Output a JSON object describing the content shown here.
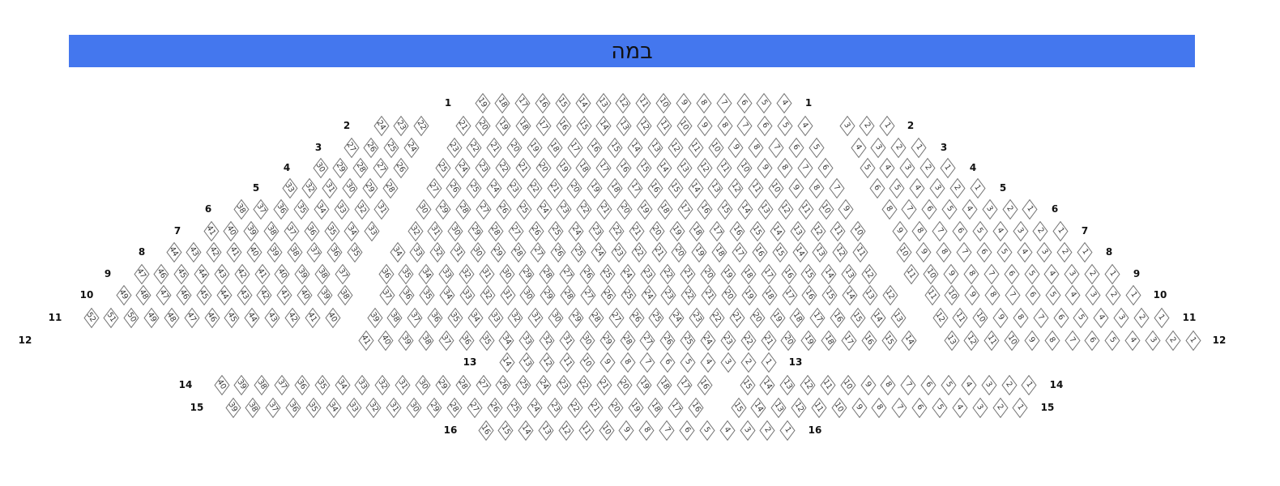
{
  "stage": {
    "label": "במה",
    "color": "#4477ee"
  },
  "rows": [
    {
      "label": "1",
      "blocks": [
        [
          19,
          4
        ]
      ]
    },
    {
      "label": "2",
      "blocks": [
        [
          24,
          22
        ],
        [
          21,
          4
        ],
        [
          3,
          1
        ]
      ]
    },
    {
      "label": "3",
      "blocks": [
        [
          27,
          24
        ],
        [
          23,
          5
        ],
        [
          4,
          1
        ]
      ]
    },
    {
      "label": "4",
      "blocks": [
        [
          30,
          26
        ],
        [
          25,
          6
        ],
        [
          5,
          1
        ]
      ]
    },
    {
      "label": "5",
      "blocks": [
        [
          33,
          28
        ],
        [
          27,
          7
        ],
        [
          6,
          1
        ]
      ]
    },
    {
      "label": "6",
      "blocks": [
        [
          38,
          31
        ],
        [
          30,
          9
        ],
        [
          8,
          1
        ]
      ]
    },
    {
      "label": "7",
      "blocks": [
        [
          41,
          33
        ],
        [
          32,
          10
        ],
        [
          9,
          1
        ]
      ]
    },
    {
      "label": "8",
      "blocks": [
        [
          44,
          35
        ],
        [
          34,
          11
        ],
        [
          10,
          1
        ]
      ]
    },
    {
      "label": "9",
      "blocks": [
        [
          47,
          37
        ],
        [
          36,
          12
        ],
        [
          11,
          1
        ]
      ]
    },
    {
      "label": "10",
      "blocks": [
        [
          49,
          38
        ],
        [
          37,
          12
        ],
        [
          11,
          1
        ]
      ]
    },
    {
      "label": "11",
      "blocks": [
        [
          52,
          40
        ],
        [
          39,
          13
        ],
        [
          12,
          1
        ]
      ]
    },
    {
      "label": "12",
      "blocks": [
        [
          41,
          14
        ],
        [
          13,
          1
        ]
      ]
    },
    {
      "label": "13",
      "blocks": [
        [
          14,
          1
        ]
      ]
    },
    {
      "label": "14",
      "blocks": [
        [
          40,
          16
        ],
        [
          15,
          1
        ]
      ]
    },
    {
      "label": "15",
      "blocks": [
        [
          39,
          16
        ],
        [
          15,
          1
        ]
      ]
    },
    {
      "label": "16",
      "blocks": [
        [
          16,
          1
        ]
      ]
    }
  ]
}
